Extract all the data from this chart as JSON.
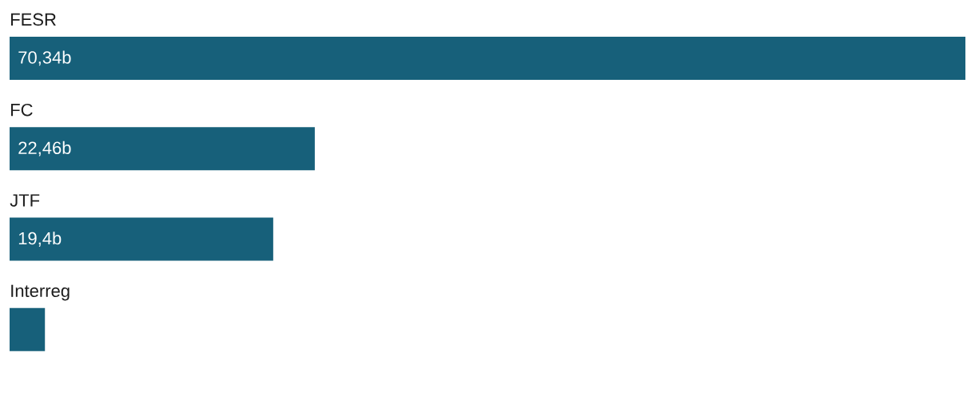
{
  "chart_data": {
    "type": "bar",
    "orientation": "horizontal",
    "categories": [
      "FESR",
      "FC",
      "JTF",
      "Interreg"
    ],
    "values": [
      70.34,
      22.46,
      19.4,
      2.6
    ],
    "color": "#17607a",
    "value_labels": [
      "70,34b",
      "22,46b",
      "19,4b",
      null
    ]
  }
}
